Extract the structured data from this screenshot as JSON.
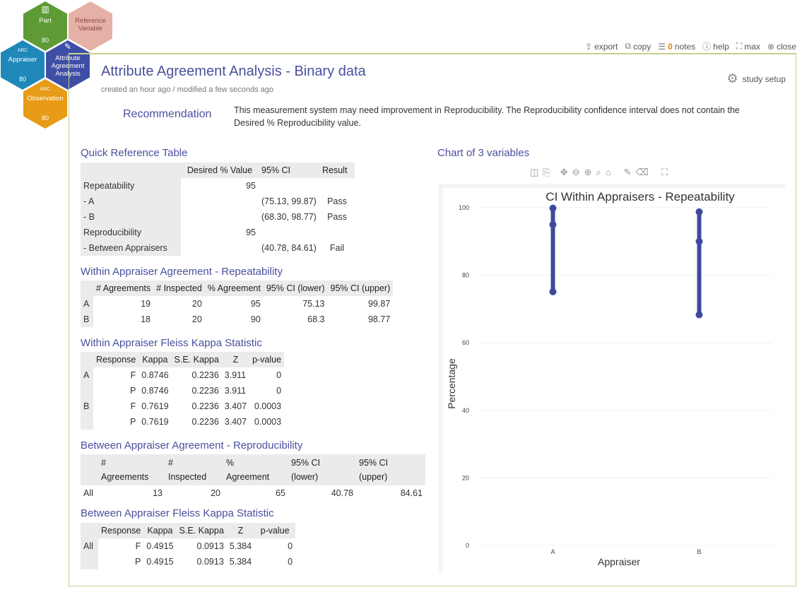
{
  "workflow": {
    "part": {
      "label": "Part",
      "count": "80"
    },
    "reference": {
      "label": "Reference Variable"
    },
    "appraiser": {
      "label": "Appraiser",
      "abc": "ABC",
      "count": "80"
    },
    "analysis": {
      "label": "Attribute Agreement Analysis"
    },
    "observation": {
      "label": "Observation",
      "abc": "ABC",
      "count": "80"
    }
  },
  "toolbar": {
    "export": "export",
    "copy": "copy",
    "notes_count": "0",
    "notes": "notes",
    "help": "help",
    "max": "max",
    "close": "close"
  },
  "header": {
    "title": "Attribute Agreement Analysis - Binary data",
    "meta": "created an hour ago / modified a few seconds ago",
    "study_setup": "study setup"
  },
  "recommendation": {
    "label": "Recommendation",
    "text": "This measurement system may need improvement in Reproducibility. The Reproducibility confidence interval does not contain the Desired % Reproducibility value."
  },
  "quick_ref": {
    "title": "Quick Reference Table",
    "headers": [
      "",
      "Desired % Value",
      "95% CI",
      "Result"
    ],
    "rows": [
      [
        "Repeatability",
        "95",
        "",
        ""
      ],
      [
        "- A",
        "",
        "(75.13, 99.87)",
        "Pass"
      ],
      [
        "- B",
        "",
        "(68.30, 98.77)",
        "Pass"
      ],
      [
        "Reproducibility",
        "95",
        "",
        ""
      ],
      [
        "- Between Appraisers",
        "",
        "(40.78, 84.61)",
        "Fail"
      ]
    ]
  },
  "within_agree": {
    "title": "Within Appraiser Agreement - Repeatability",
    "headers": [
      "",
      "# Agreements",
      "# Inspected",
      "% Agreement",
      "95% CI (lower)",
      "95% CI (upper)"
    ],
    "rows": [
      [
        "A",
        "19",
        "20",
        "95",
        "75.13",
        "99.87"
      ],
      [
        "B",
        "18",
        "20",
        "90",
        "68.3",
        "98.77"
      ]
    ]
  },
  "within_kappa": {
    "title": "Within Appraiser Fleiss Kappa Statistic",
    "headers": [
      "",
      "Response",
      "Kappa",
      "S.E. Kappa",
      "Z",
      "p-value"
    ],
    "rows": [
      [
        "A",
        "F",
        "0.8746",
        "0.2236",
        "3.911",
        "0"
      ],
      [
        "",
        "P",
        "0.8746",
        "0.2236",
        "3.911",
        "0"
      ],
      [
        "B",
        "F",
        "0.7619",
        "0.2236",
        "3.407",
        "0.0003"
      ],
      [
        "",
        "P",
        "0.7619",
        "0.2236",
        "3.407",
        "0.0003"
      ]
    ]
  },
  "between_agree": {
    "title": "Between Appraiser Agreement - Reproducibility",
    "headers": [
      [
        "",
        ""
      ],
      [
        "#",
        "Agreements"
      ],
      [
        "#",
        "Inspected"
      ],
      [
        "%",
        "Agreement"
      ],
      [
        "95% CI",
        "(lower)"
      ],
      [
        "95% CI",
        "(upper)"
      ]
    ],
    "rows": [
      [
        "All",
        "13",
        "20",
        "65",
        "40.78",
        "84.61"
      ]
    ]
  },
  "between_kappa": {
    "title": "Between Appraiser Fleiss Kappa Statistic",
    "headers": [
      "",
      "Response",
      "Kappa",
      "S.E. Kappa",
      "Z",
      "p-value"
    ],
    "rows": [
      [
        "All",
        "F",
        "0.4915",
        "0.0913",
        "5.384",
        "0"
      ],
      [
        "",
        "P",
        "0.4915",
        "0.0913",
        "5.384",
        "0"
      ]
    ]
  },
  "chart_section": {
    "title": "Chart of 3 variables"
  },
  "colors": {
    "accent": "#4b4f9e",
    "series": "#3d4a9c"
  },
  "chart_data": {
    "type": "scatter",
    "title": "CI Within Appraisers - Repeatability",
    "xlabel": "Appraiser",
    "ylabel": "Percentage",
    "categories": [
      "A",
      "B"
    ],
    "ylim": [
      0,
      100
    ],
    "yticks": [
      0,
      20,
      40,
      60,
      80,
      100
    ],
    "series": [
      {
        "category": "A",
        "lower": 75.13,
        "value": 95,
        "upper": 99.87
      },
      {
        "category": "B",
        "lower": 68.3,
        "value": 90,
        "upper": 98.77
      }
    ]
  }
}
